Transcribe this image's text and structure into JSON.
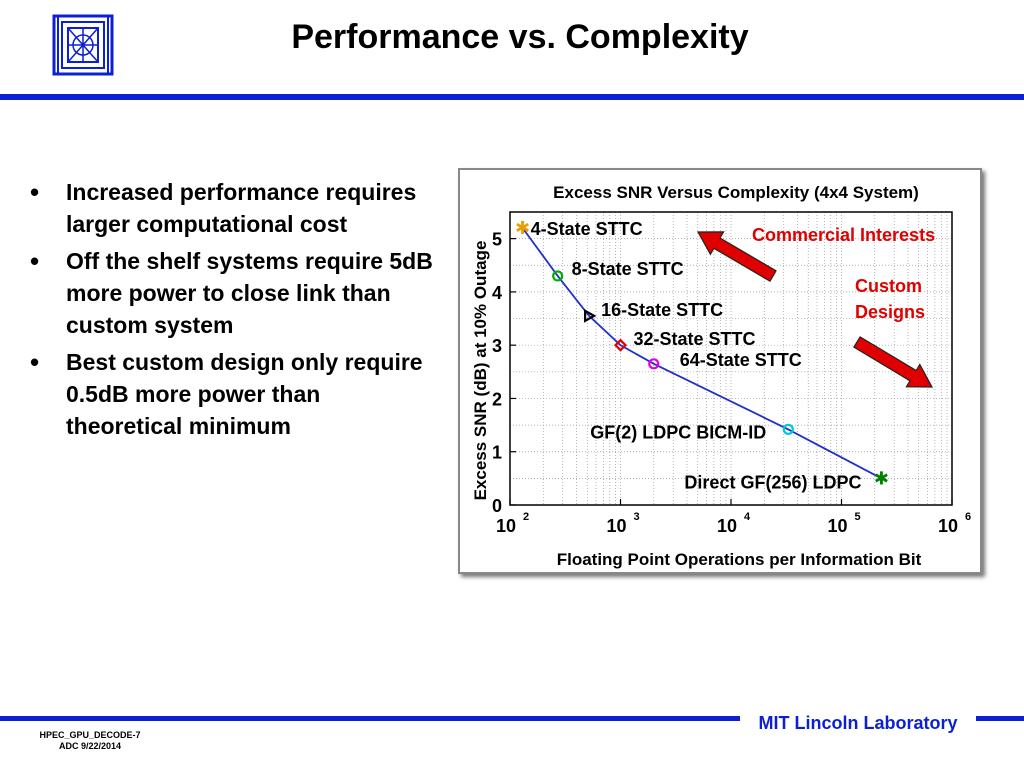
{
  "slide": {
    "title": "Performance vs. Complexity",
    "bullets": [
      "Increased performance requires larger computational cost",
      "Off the shelf systems require 5dB more power to close link than custom system",
      "Best custom design only require 0.5dB more power than theoretical minimum"
    ],
    "bullet_glyph": "•"
  },
  "footer": {
    "lab": "MIT Lincoln Laboratory",
    "doc_id": "HPEC_GPU_DECODE-7",
    "date": "ADC 9/22/2014"
  },
  "colors": {
    "accent_blue": "#0b1fd4",
    "arrow_red": "#e00000",
    "label_red": "#e00000"
  },
  "chart_data": {
    "type": "line",
    "title": "Excess SNR Versus Complexity (4x4 System)",
    "xlabel": "Floating Point Operations per Information Bit",
    "ylabel": "Excess SNR (dB) at 10% Outage",
    "xscale": "log",
    "xlim": [
      100,
      1000000
    ],
    "ylim": [
      0,
      5.5
    ],
    "grid": true,
    "x_ticks": [
      {
        "base": "10",
        "exp": "2"
      },
      {
        "base": "10",
        "exp": "3"
      },
      {
        "base": "10",
        "exp": "4"
      },
      {
        "base": "10",
        "exp": "5"
      },
      {
        "base": "10",
        "exp": "6"
      }
    ],
    "y_ticks": [
      "0",
      "1",
      "2",
      "3",
      "4",
      "5"
    ],
    "series": [
      {
        "color": "#1f2fd0",
        "points": [
          {
            "label": "4-State STTC",
            "x": 130,
            "y": 5.2,
            "marker": "star",
            "color": "#e8a000"
          },
          {
            "label": "8-State STTC",
            "x": 270,
            "y": 4.3,
            "marker": "circle",
            "color": "#00b000"
          },
          {
            "label": "16-State STTC",
            "x": 520,
            "y": 3.55,
            "marker": "triangle",
            "color": "#000000"
          },
          {
            "label": "32-State STTC",
            "x": 1000,
            "y": 3.0,
            "marker": "diamond",
            "color": "#e00000"
          },
          {
            "label": "64-State STTC",
            "x": 2000,
            "y": 2.65,
            "marker": "circle",
            "color": "#e000e0"
          },
          {
            "label": "GF(2) LDPC BICM-ID",
            "x": 33000,
            "y": 1.42,
            "marker": "circle",
            "color": "#00c8e0"
          },
          {
            "label": "Direct GF(256) LDPC",
            "x": 230000,
            "y": 0.5,
            "marker": "star",
            "color": "#008000"
          }
        ]
      }
    ],
    "annotations": {
      "commercial": "Commercial Interests",
      "custom_line1": "Custom",
      "custom_line2": "Designs"
    }
  }
}
